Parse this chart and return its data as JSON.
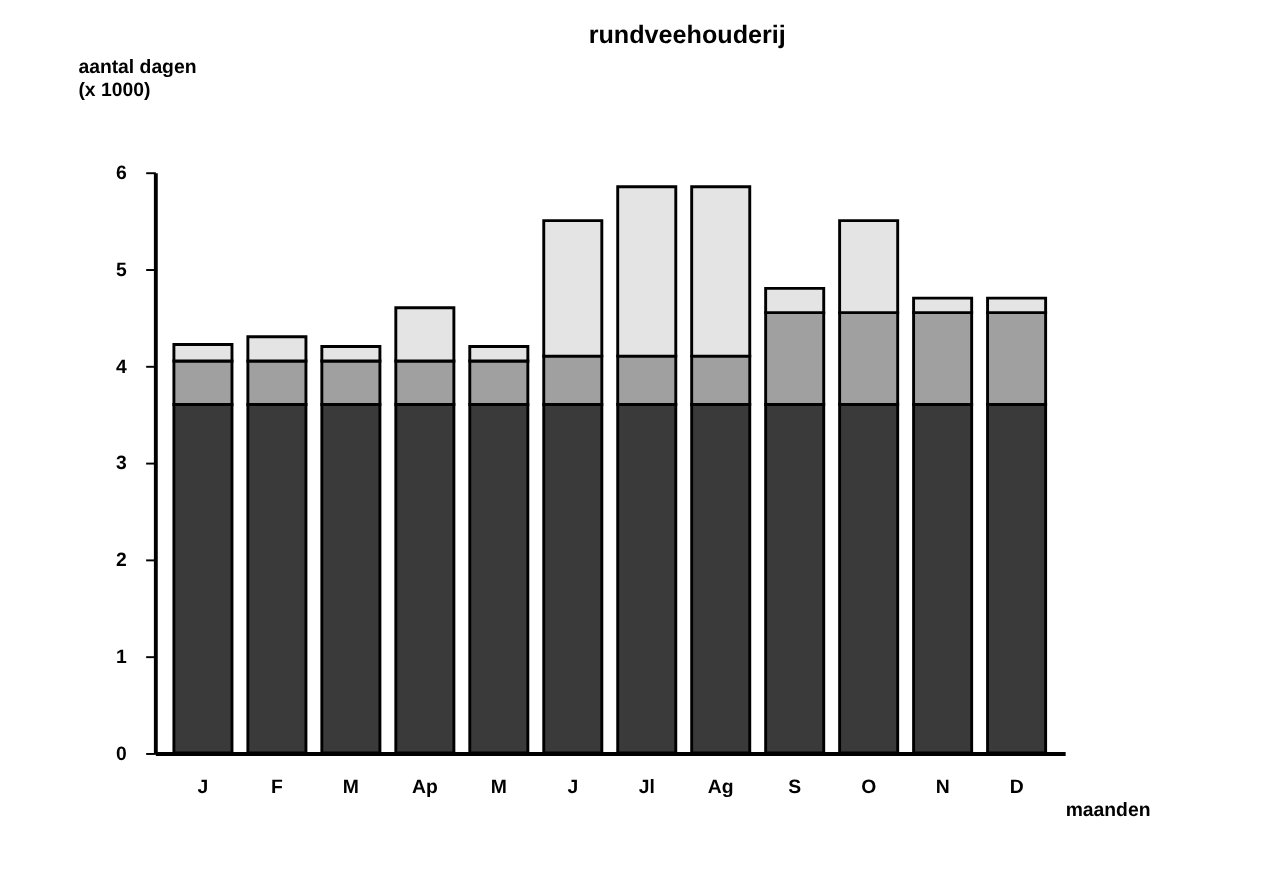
{
  "chart_data": {
    "type": "bar",
    "title": "rundveehouderij",
    "xlabel": "maanden",
    "ylabel": "aantal dagen\n(x 1000)",
    "categories": [
      "J",
      "F",
      "M",
      "Ap",
      "M",
      "J",
      "Jl",
      "Ag",
      "S",
      "O",
      "N",
      "D"
    ],
    "stacked": true,
    "series": [
      {
        "color": "#3a3a3a",
        "values": [
          3.6,
          3.6,
          3.6,
          3.6,
          3.6,
          3.6,
          3.6,
          3.6,
          3.6,
          3.6,
          3.6,
          3.6
        ]
      },
      {
        "color": "#a0a0a0",
        "values": [
          0.45,
          0.45,
          0.45,
          0.45,
          0.45,
          0.5,
          0.5,
          0.5,
          0.95,
          0.95,
          0.95,
          0.95
        ]
      },
      {
        "color": "#e4e4e4",
        "values": [
          0.17,
          0.25,
          0.15,
          0.55,
          0.15,
          1.4,
          1.75,
          1.75,
          0.25,
          0.95,
          0.15,
          0.15
        ]
      }
    ],
    "ylim": [
      0,
      6
    ],
    "yticks": [
      0,
      1,
      2,
      3,
      4,
      5,
      6
    ],
    "grid": false,
    "legend": false
  }
}
